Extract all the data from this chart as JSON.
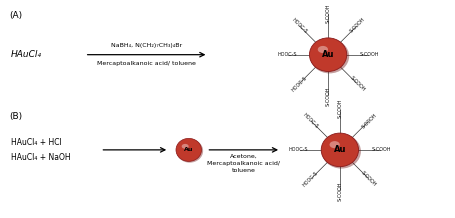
{
  "bg_color": "#ffffff",
  "text_color": "#000000",
  "label_A": "(A)",
  "label_B": "(B)",
  "reactant_A": "HAuCl₄",
  "reagent_A_top": "NaBH₄, N(CH₂)₇CH₃)₄Br",
  "reagent_A_bot": "Mercaptoalkanoic acid/ toluene",
  "reactant_B1": "HAuCl₄ + HCl",
  "reactant_B2": "HAuCl₄ + NaOH",
  "reagent_B2_top": "Acetone,",
  "reagent_B2_mid": "Mercaptoalkanoic acid/",
  "reagent_B2_bot": "toluene",
  "au_label": "Au",
  "au_color": "#c0392b",
  "au_edge": "#8b1a1a",
  "arm_color": "#222222"
}
